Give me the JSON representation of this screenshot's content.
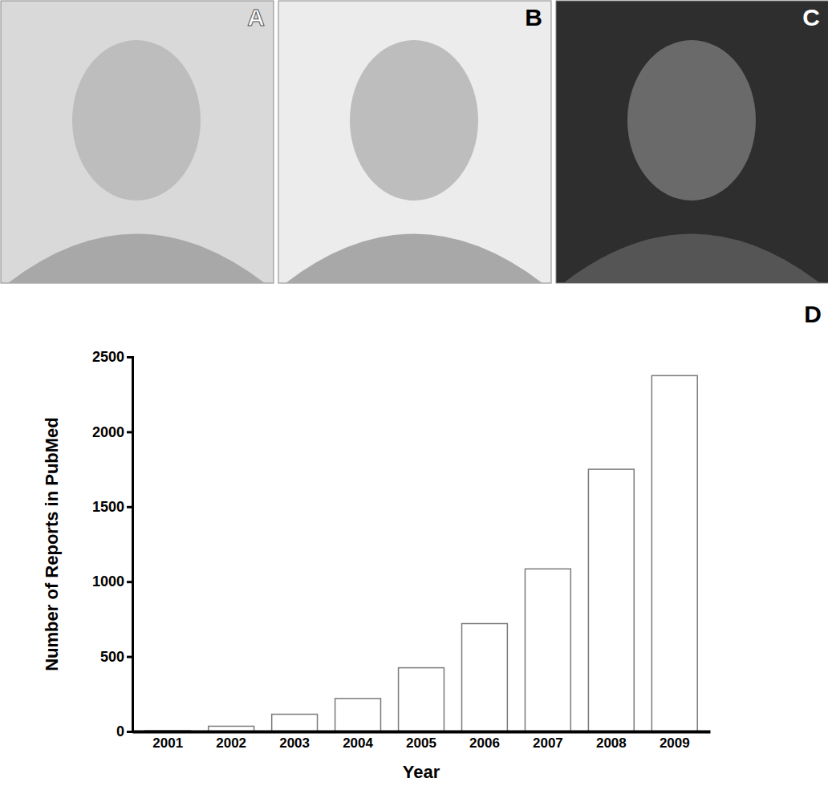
{
  "panel_labels": {
    "photos": [
      "A",
      "B",
      "C"
    ],
    "chart": "D"
  },
  "chart_data": {
    "type": "bar",
    "x_label": "Year",
    "y_label": "Number of Reports in PubMed",
    "categories": [
      "2001",
      "2002",
      "2003",
      "2004",
      "2005",
      "2006",
      "2007",
      "2008",
      "2009"
    ],
    "values": [
      5,
      35,
      115,
      220,
      425,
      720,
      1085,
      1750,
      2375
    ],
    "color": "#ffffff",
    "ylim": [
      0,
      2500
    ],
    "yticks": [
      0,
      500,
      1000,
      1500,
      2000,
      2500
    ],
    "grid": false
  }
}
